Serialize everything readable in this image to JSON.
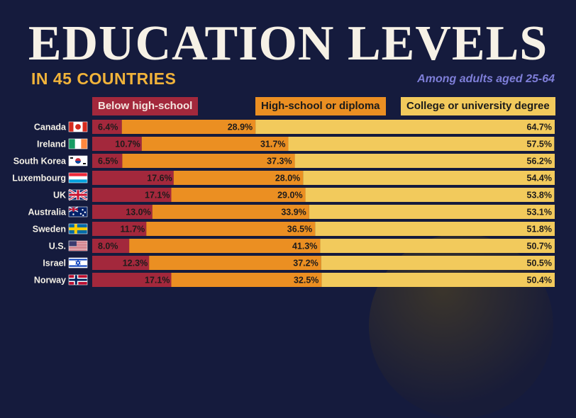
{
  "header": {
    "title": "EDUCATION LEVELS",
    "subtitle": "IN 45 COUNTRIES",
    "note": "Among adults aged 25-64"
  },
  "legend": {
    "below": "Below high-school",
    "hs": "High-school or diploma",
    "college": "College or university degree"
  },
  "colors": {
    "background": "#151b3d",
    "below": "#a3283c",
    "hs": "#eb8f22",
    "college": "#f2ca5c"
  },
  "chart_data": {
    "type": "bar",
    "stacked": true,
    "orientation": "horizontal",
    "categories": [
      "Canada",
      "Ireland",
      "South Korea",
      "Luxembourg",
      "UK",
      "Australia",
      "Sweden",
      "U.S.",
      "Israel",
      "Norway"
    ],
    "flags": [
      "canada-flag-icon",
      "ireland-flag-icon",
      "south-korea-flag-icon",
      "luxembourg-flag-icon",
      "uk-flag-icon",
      "australia-flag-icon",
      "sweden-flag-icon",
      "us-flag-icon",
      "israel-flag-icon",
      "norway-flag-icon"
    ],
    "series": [
      {
        "name": "Below high-school",
        "values": [
          6.4,
          10.7,
          6.5,
          17.6,
          17.1,
          13.0,
          11.7,
          8.0,
          12.3,
          17.1
        ]
      },
      {
        "name": "High-school or diploma",
        "values": [
          28.9,
          31.7,
          37.3,
          28.0,
          29.0,
          33.9,
          36.5,
          41.3,
          37.2,
          32.5
        ]
      },
      {
        "name": "College or university degree",
        "values": [
          64.7,
          57.5,
          56.2,
          54.4,
          53.8,
          53.1,
          51.8,
          50.7,
          50.5,
          50.4
        ]
      }
    ],
    "labels": [
      [
        "6.4%",
        "28.9%",
        "64.7%"
      ],
      [
        "10.7%",
        "31.7%",
        "57.5%"
      ],
      [
        "6.5%",
        "37.3%",
        "56.2%"
      ],
      [
        "17.6%",
        "28.0%",
        "54.4%"
      ],
      [
        "17.1%",
        "29.0%",
        "53.8%"
      ],
      [
        "13.0%",
        "33.9%",
        "53.1%"
      ],
      [
        "11.7%",
        "36.5%",
        "51.8%"
      ],
      [
        "8.0%",
        "41.3%",
        "50.7%"
      ],
      [
        "12.3%",
        "37.2%",
        "50.5%"
      ],
      [
        "17.1%",
        "32.5%",
        "50.4%"
      ]
    ],
    "unit": "%"
  }
}
